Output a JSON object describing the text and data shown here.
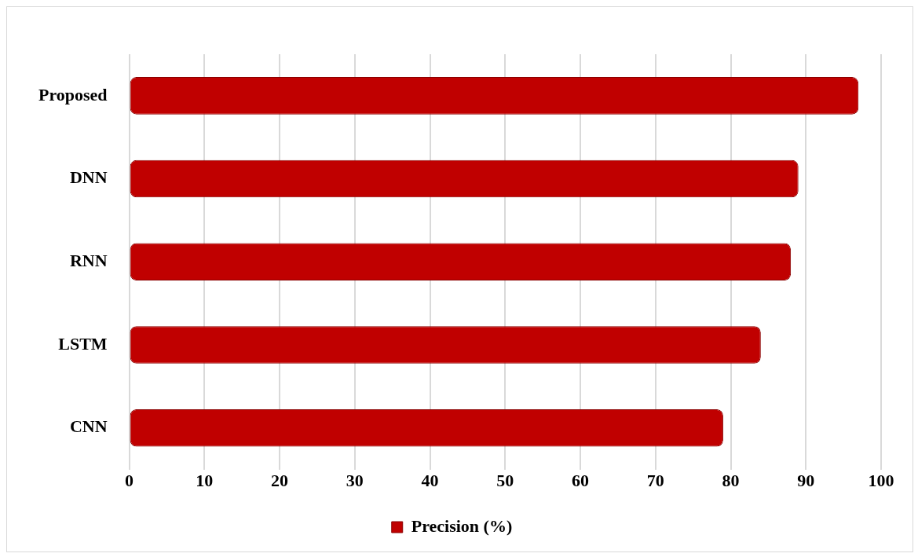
{
  "chart_data": {
    "type": "bar",
    "orientation": "horizontal",
    "categories": [
      "Proposed",
      "DNN",
      "RNN",
      "LSTM",
      "CNN"
    ],
    "series": [
      {
        "name": "Precision (%)",
        "color": "#c00000",
        "values": [
          97,
          89,
          88,
          84,
          79
        ]
      }
    ],
    "xlim": [
      0,
      100
    ],
    "xticks": [
      0,
      10,
      20,
      30,
      40,
      50,
      60,
      70,
      80,
      90,
      100
    ],
    "grid": "x",
    "legend": "bottom"
  }
}
